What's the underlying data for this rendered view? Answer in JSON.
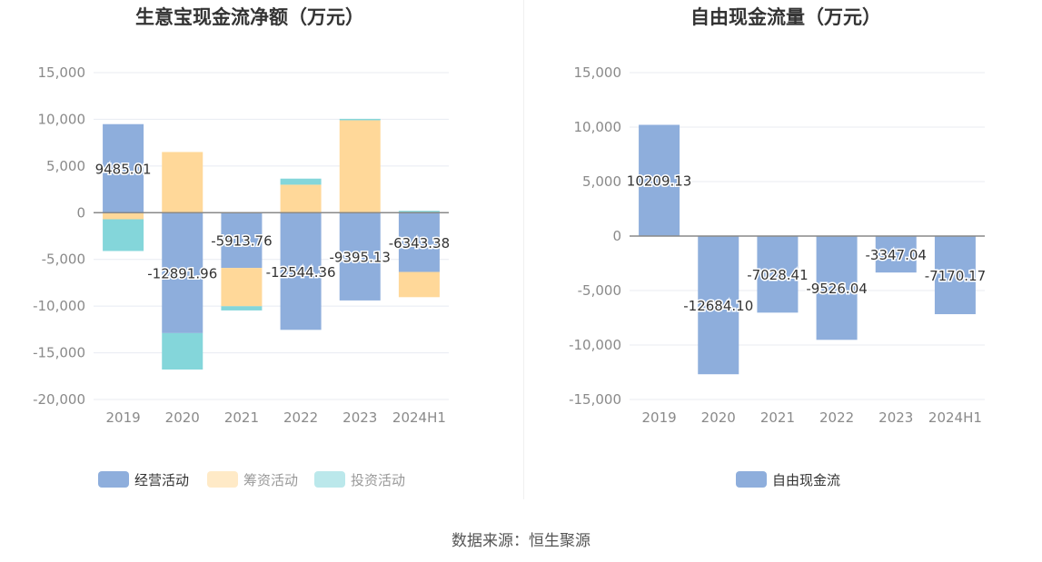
{
  "source": "数据来源：恒生聚源",
  "colors": {
    "operating": "#8eaedc",
    "financing": "#ffd899",
    "investing": "#84d6da",
    "free_cf": "#8eaedc",
    "grid": "#e8ebf2",
    "axis": "#888888"
  },
  "chart_data": [
    {
      "type": "bar",
      "stacked": true,
      "title": "生意宝现金流净额（万元）",
      "categories": [
        "2019",
        "2020",
        "2021",
        "2022",
        "2023",
        "2024H1"
      ],
      "ylim": [
        -20000,
        15000
      ],
      "yticks": [
        15000,
        10000,
        5000,
        0,
        -5000,
        -10000,
        -15000,
        -20000
      ],
      "ytick_labels": [
        "15,000",
        "10,000",
        "5,000",
        "0",
        "-5,000",
        "-10,000",
        "-15,000",
        "-20,000"
      ],
      "grid": true,
      "legend_position": "bottom",
      "series": [
        {
          "name": "经营活动",
          "color_key": "operating",
          "values": [
            9485.01,
            -12891.96,
            -5913.76,
            -12544.36,
            -9395.13,
            -6343.38
          ],
          "labels": [
            "9485.01",
            "-12891.96",
            "-5913.76",
            "-12544.36",
            "-9395.13",
            "-6343.38"
          ]
        },
        {
          "name": "筹资活动",
          "color_key": "financing",
          "values": [
            -700,
            6500,
            -4100,
            3000,
            9900,
            -2700
          ]
        },
        {
          "name": "投资活动",
          "color_key": "investing",
          "values": [
            -3400,
            -3900,
            -450,
            650,
            150,
            200
          ]
        }
      ]
    },
    {
      "type": "bar",
      "title": "自由现金流量（万元）",
      "categories": [
        "2019",
        "2020",
        "2021",
        "2022",
        "2023",
        "2024H1"
      ],
      "ylim": [
        -15000,
        15000
      ],
      "yticks": [
        15000,
        10000,
        5000,
        0,
        -5000,
        -10000,
        -15000
      ],
      "ytick_labels": [
        "15,000",
        "10,000",
        "5,000",
        "0",
        "-5,000",
        "-10,000",
        "-15,000"
      ],
      "grid": true,
      "legend_position": "bottom",
      "series": [
        {
          "name": "自由现金流",
          "color_key": "free_cf",
          "values": [
            10209.13,
            -12684.1,
            -7028.41,
            -9526.04,
            -3347.04,
            -7170.17
          ],
          "labels": [
            "10209.13",
            "-12684.10",
            "-7028.41",
            "-9526.04",
            "-3347.04",
            "-7170.17"
          ]
        }
      ]
    }
  ]
}
